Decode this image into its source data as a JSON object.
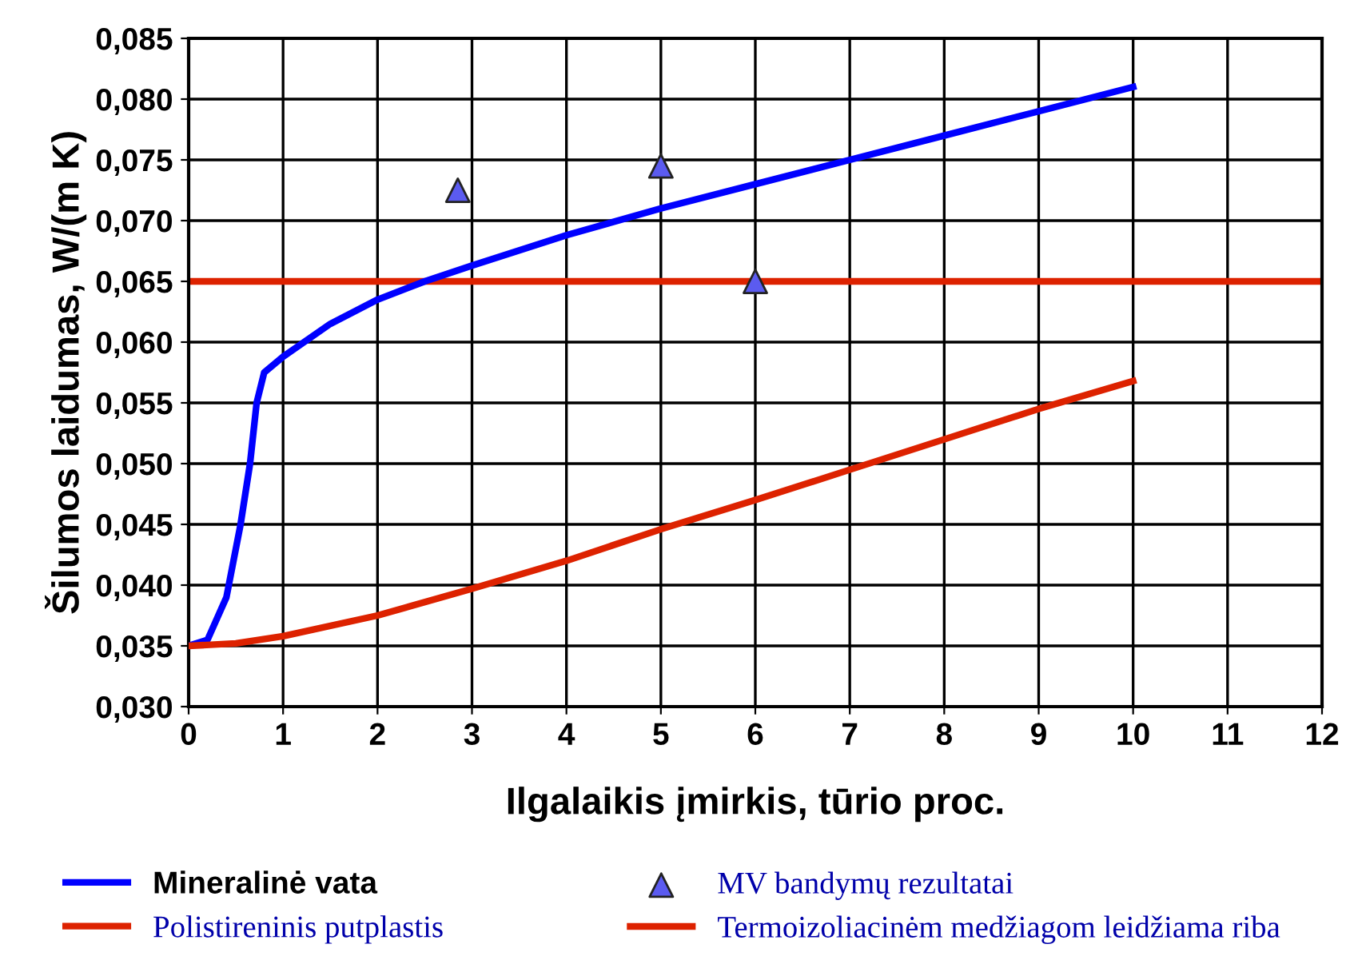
{
  "chart_data": {
    "type": "line",
    "xlabel": "Ilgalaikis įmirkis, tūrio proc.",
    "ylabel": "Šilumos laidumas, W/(m K)",
    "xlim": [
      0,
      12
    ],
    "xticks": [
      0,
      1,
      2,
      3,
      4,
      5,
      6,
      7,
      8,
      9,
      10,
      11,
      12
    ],
    "ylim": [
      0.03,
      0.085
    ],
    "yticks": [
      {
        "value": 0.03,
        "label": "0,030"
      },
      {
        "value": 0.035,
        "label": "0,035"
      },
      {
        "value": 0.04,
        "label": "0,040"
      },
      {
        "value": 0.045,
        "label": "0,045"
      },
      {
        "value": 0.05,
        "label": "0,050"
      },
      {
        "value": 0.055,
        "label": "0,055"
      },
      {
        "value": 0.06,
        "label": "0,060"
      },
      {
        "value": 0.065,
        "label": "0,065"
      },
      {
        "value": 0.07,
        "label": "0,070"
      },
      {
        "value": 0.075,
        "label": "0,075"
      },
      {
        "value": 0.08,
        "label": "0,080"
      },
      {
        "value": 0.085,
        "label": "0,085"
      }
    ],
    "grid": true,
    "legend": "bottom",
    "series": [
      {
        "name": "Mineralinė vata",
        "color": "#0000ff",
        "x": [
          0,
          0.2,
          0.4,
          0.55,
          0.65,
          0.72,
          0.8,
          1,
          1.5,
          2,
          2.5,
          3,
          4,
          5,
          6,
          7,
          8,
          9,
          10
        ],
        "values": [
          0.035,
          0.0355,
          0.039,
          0.045,
          0.05,
          0.055,
          0.0575,
          0.0588,
          0.0615,
          0.0635,
          0.065,
          0.0663,
          0.0688,
          0.071,
          0.073,
          0.075,
          0.077,
          0.079,
          0.081
        ]
      },
      {
        "name": "Polistireninis putplastis",
        "color": "#dd2200",
        "x": [
          0,
          0.5,
          1,
          2,
          3,
          4,
          5,
          6,
          7,
          8,
          9,
          10
        ],
        "values": [
          0.035,
          0.0352,
          0.0358,
          0.0375,
          0.0397,
          0.042,
          0.0446,
          0.047,
          0.0495,
          0.052,
          0.0545,
          0.0568
        ]
      },
      {
        "name": "MV bandymų rezultatai",
        "type": "scatter",
        "marker": "triangle",
        "color": "#5b5bf0",
        "x": [
          2.85,
          5,
          6
        ],
        "values": [
          0.0725,
          0.0745,
          0.065
        ]
      }
    ],
    "ref_lines": [
      {
        "axis": "y",
        "value": 0.065,
        "label": "Termoizoliacinėm medžiagom leidžiama riba",
        "color": "#dd2200"
      }
    ]
  }
}
